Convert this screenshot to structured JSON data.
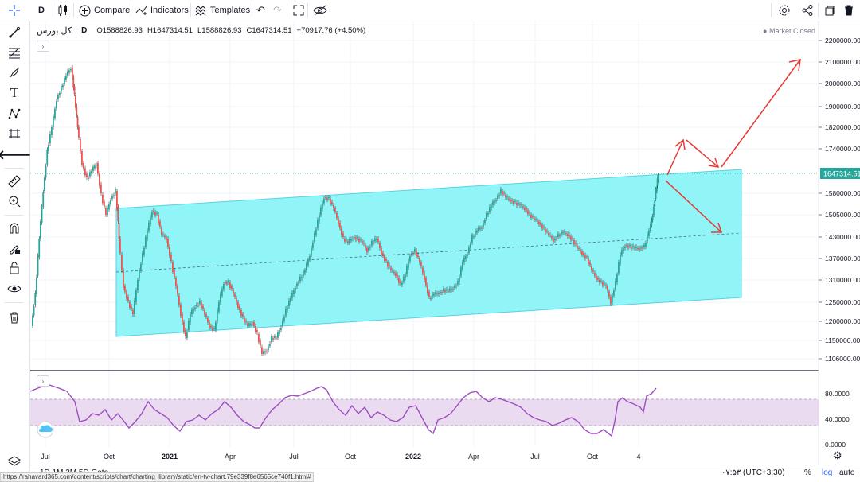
{
  "toolbar": {
    "interval": "D",
    "compare_label": "Compare",
    "indicators_label": "Indicators",
    "templates_label": "Templates"
  },
  "legend": {
    "symbol": "کل بورس",
    "interval": "D",
    "open": "O1588826.93",
    "high": "H1647314.51",
    "low": "L1588826.93",
    "close": "C1647314.51",
    "change": "+70917.76 (+4.50%)"
  },
  "market_status": "Market Closed",
  "price_axis": {
    "ticks": [
      "2200000.00",
      "2100000.00",
      "2000000.00",
      "1900000.00",
      "1820000.00",
      "1740000.00",
      "1580000.00",
      "1505000.00",
      "1430000.00",
      "1370000.00",
      "1310000.00",
      "1250000.00",
      "1200000.00",
      "1150000.00",
      "1106000.00"
    ],
    "last_price_label": "1647314.51",
    "colors": {
      "last_price_bg": "#26a69a",
      "up": "#26a69a",
      "down": "#ef5350"
    }
  },
  "rsi_axis": {
    "ticks": [
      "80.0000",
      "40.0000",
      "0.0000"
    ]
  },
  "time_axis": {
    "ticks": [
      "Jul",
      "Oct",
      "2021",
      "Apr",
      "Jul",
      "Oct",
      "2022",
      "Apr",
      "Jul",
      "Oct",
      "4"
    ]
  },
  "chart_data": {
    "type": "candlestick",
    "channel_color": "#00e5ff",
    "rsi_color": "#9c4dbf",
    "annotation_color": "#d50000"
  },
  "bottom": {
    "timeframes": "1D  1M  3M  5D  Goto",
    "clock": "۰۷:۵۳ (UTC+3:30)",
    "percent": "%",
    "log": "log",
    "auto": "auto"
  },
  "status_url": "https://rahavard365.com/content/scripts/chart/charting_library/static/en-tv-chart.79e339f8e6565ce740f1.html#"
}
